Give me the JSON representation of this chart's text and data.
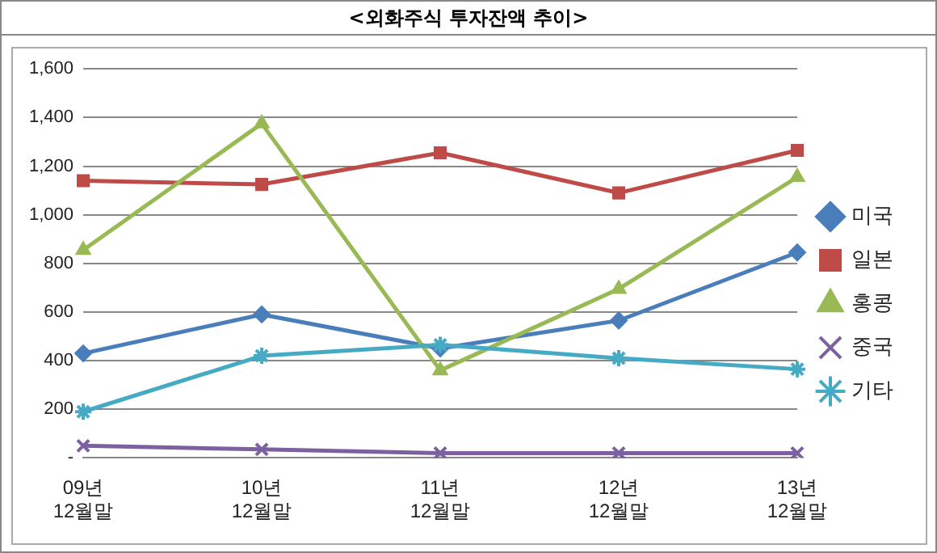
{
  "chart_data": {
    "type": "line",
    "title": "<외화주식 투자잔액 추이>",
    "categories": [
      "09년\n12월말",
      "10년\n12월말",
      "11년\n12월말",
      "12년\n12월말",
      "13년\n12월말"
    ],
    "series": [
      {
        "name": "미국",
        "color": "#4a7ebb",
        "marker": "diamond",
        "values": [
          430,
          590,
          450,
          565,
          845
        ]
      },
      {
        "name": "일본",
        "color": "#be4b48",
        "marker": "square",
        "values": [
          1140,
          1125,
          1255,
          1090,
          1265
        ]
      },
      {
        "name": "홍콩",
        "color": "#98b954",
        "marker": "triangle",
        "values": [
          855,
          1375,
          360,
          695,
          1155
        ]
      },
      {
        "name": "중국",
        "color": "#7d60a0",
        "marker": "cross",
        "values": [
          50,
          35,
          20,
          20,
          20
        ]
      },
      {
        "name": "기타",
        "color": "#46aac5",
        "marker": "cross",
        "values": [
          190,
          420,
          465,
          410,
          365
        ]
      }
    ],
    "ylim": [
      0,
      1600
    ],
    "yticks": [
      {
        "value": 0,
        "label": "-"
      },
      {
        "value": 200,
        "label": "200"
      },
      {
        "value": 400,
        "label": "400"
      },
      {
        "value": 600,
        "label": "600"
      },
      {
        "value": 800,
        "label": "800"
      },
      {
        "value": 1000,
        "label": "1,000"
      },
      {
        "value": 1200,
        "label": "1,200"
      },
      {
        "value": 1400,
        "label": "1,400"
      },
      {
        "value": 1600,
        "label": "1,600"
      }
    ],
    "grid": "y",
    "legend": "right",
    "line_style": "solid"
  }
}
